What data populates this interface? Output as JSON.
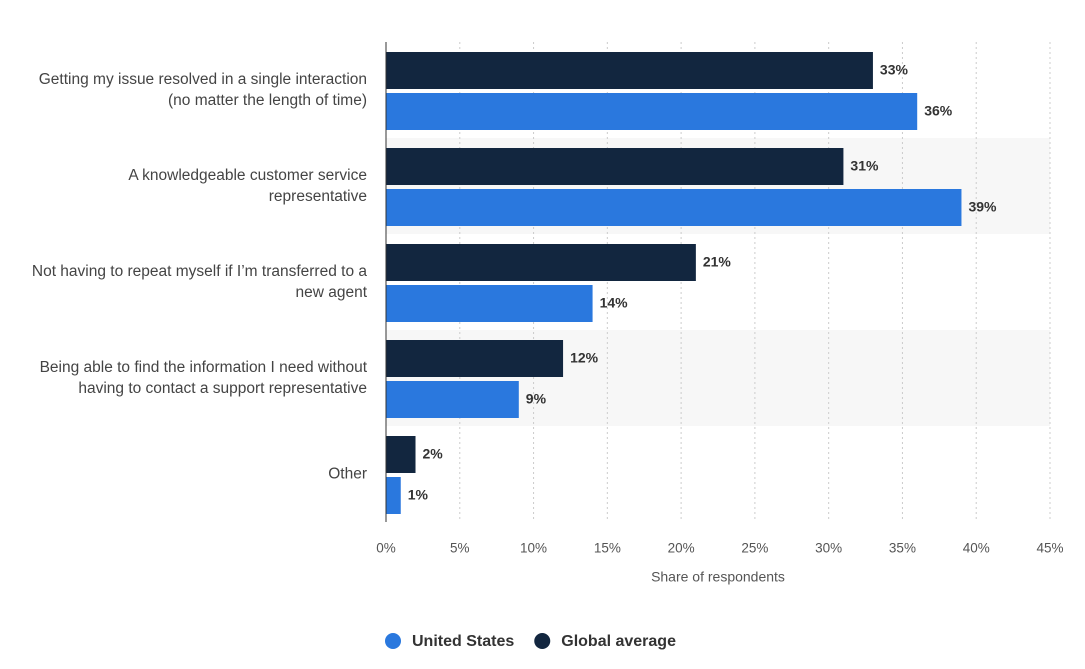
{
  "chart_data": {
    "type": "bar",
    "orientation": "horizontal",
    "categories": [
      "Getting my issue resolved in a single interaction (no matter the length of time)",
      "A knowledgeable customer service representative",
      "Not having to repeat myself if I’m transferred to a new agent",
      "Being able to find the information I need without having to contact a support representative",
      "Other"
    ],
    "series": [
      {
        "name": "United States",
        "color": "#2a78de",
        "values": [
          36,
          39,
          14,
          9,
          1
        ],
        "value_labels": [
          "36%",
          "39%",
          "14%",
          "9%",
          "1%"
        ]
      },
      {
        "name": "Global average",
        "color": "#12263f",
        "values": [
          33,
          31,
          21,
          12,
          2
        ],
        "value_labels": [
          "33%",
          "31%",
          "21%",
          "12%",
          "2%"
        ]
      }
    ],
    "xlabel": "Share of respondents",
    "xlim": [
      0,
      45
    ],
    "xticks": [
      {
        "value": 0,
        "label": "0%"
      },
      {
        "value": 5,
        "label": "5%"
      },
      {
        "value": 10,
        "label": "10%"
      },
      {
        "value": 15,
        "label": "15%"
      },
      {
        "value": 20,
        "label": "20%"
      },
      {
        "value": 25,
        "label": "25%"
      },
      {
        "value": 30,
        "label": "30%"
      },
      {
        "value": 35,
        "label": "35%"
      },
      {
        "value": 40,
        "label": "40%"
      },
      {
        "value": 45,
        "label": "45%"
      }
    ],
    "grid": true,
    "legend": "bottom"
  }
}
